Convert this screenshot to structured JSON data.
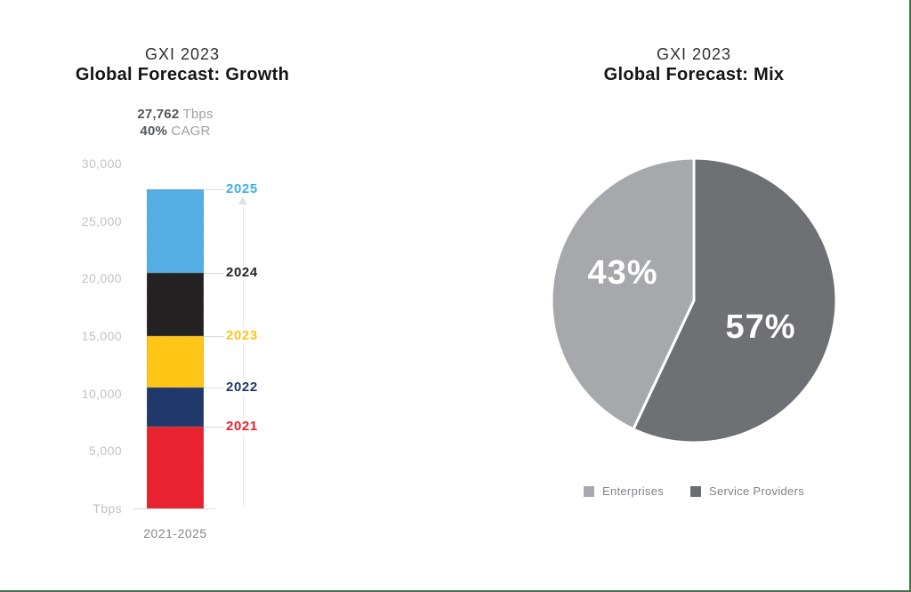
{
  "meta": {
    "background": "#FFFFFF",
    "frame_border_color": "#47704F"
  },
  "growth": {
    "title_line1": "GXI 2023",
    "title_line2": "Global Forecast: Growth",
    "annotation_value": "27,762",
    "annotation_value_unit": "Tbps",
    "annotation_cagr": "40%",
    "annotation_cagr_unit": "CAGR",
    "x_axis_label": "2021-2025"
  },
  "mix": {
    "title_line1": "GXI 2023",
    "title_line2": "Global Forecast: Mix"
  },
  "chart_data": [
    {
      "id": "growth-stacked-bar",
      "type": "bar",
      "variant": "single-stacked-column",
      "title": "GXI 2023 Global Forecast: Growth",
      "categories": [
        "2021-2025"
      ],
      "unit": "Tbps",
      "ylim": [
        0,
        30000
      ],
      "grid": false,
      "yticks": [
        {
          "value": 30000,
          "label": "30,000"
        },
        {
          "value": 25000,
          "label": "25,000"
        },
        {
          "value": 20000,
          "label": "20,000"
        },
        {
          "value": 15000,
          "label": "15,000"
        },
        {
          "value": 10000,
          "label": "10,000"
        },
        {
          "value": 5000,
          "label": "5,000"
        },
        {
          "value": 0,
          "label": "Tbps"
        }
      ],
      "series": [
        {
          "name": "2021",
          "value": 7150,
          "cumulative_top": 7150,
          "color": "#E9222F",
          "label_color": "#E9222F"
        },
        {
          "name": "2022",
          "value": 3400,
          "cumulative_top": 10550,
          "color": "#21386B",
          "label_color": "#1F3567"
        },
        {
          "name": "2023",
          "value": 4450,
          "cumulative_top": 15000,
          "color": "#FFC617",
          "label_color": "#FFC31E"
        },
        {
          "name": "2024",
          "value": 5500,
          "cumulative_top": 20500,
          "color": "#242122",
          "label_color": "#242122"
        },
        {
          "name": "2025",
          "value": 7262,
          "cumulative_top": 27762,
          "color": "#55AEE4",
          "label_color": "#3CAFE6"
        }
      ],
      "annotations": [
        "27,762 Tbps",
        "40% CAGR"
      ]
    },
    {
      "id": "mix-pie",
      "type": "pie",
      "title": "GXI 2023 Global Forecast: Mix",
      "start_angle_deg": 0,
      "direction": "clockwise",
      "slices": [
        {
          "label": "Service Providers",
          "value": 57,
          "display": "57%",
          "color": "#6F7073"
        },
        {
          "label": "Enterprises",
          "value": 43,
          "display": "43%",
          "color": "#A6A8AB"
        }
      ],
      "legend": [
        {
          "label": "Enterprises",
          "color": "#A7A9AC"
        },
        {
          "label": "Service Providers",
          "color": "#6D6E71"
        }
      ],
      "legend_position": "bottom"
    }
  ]
}
